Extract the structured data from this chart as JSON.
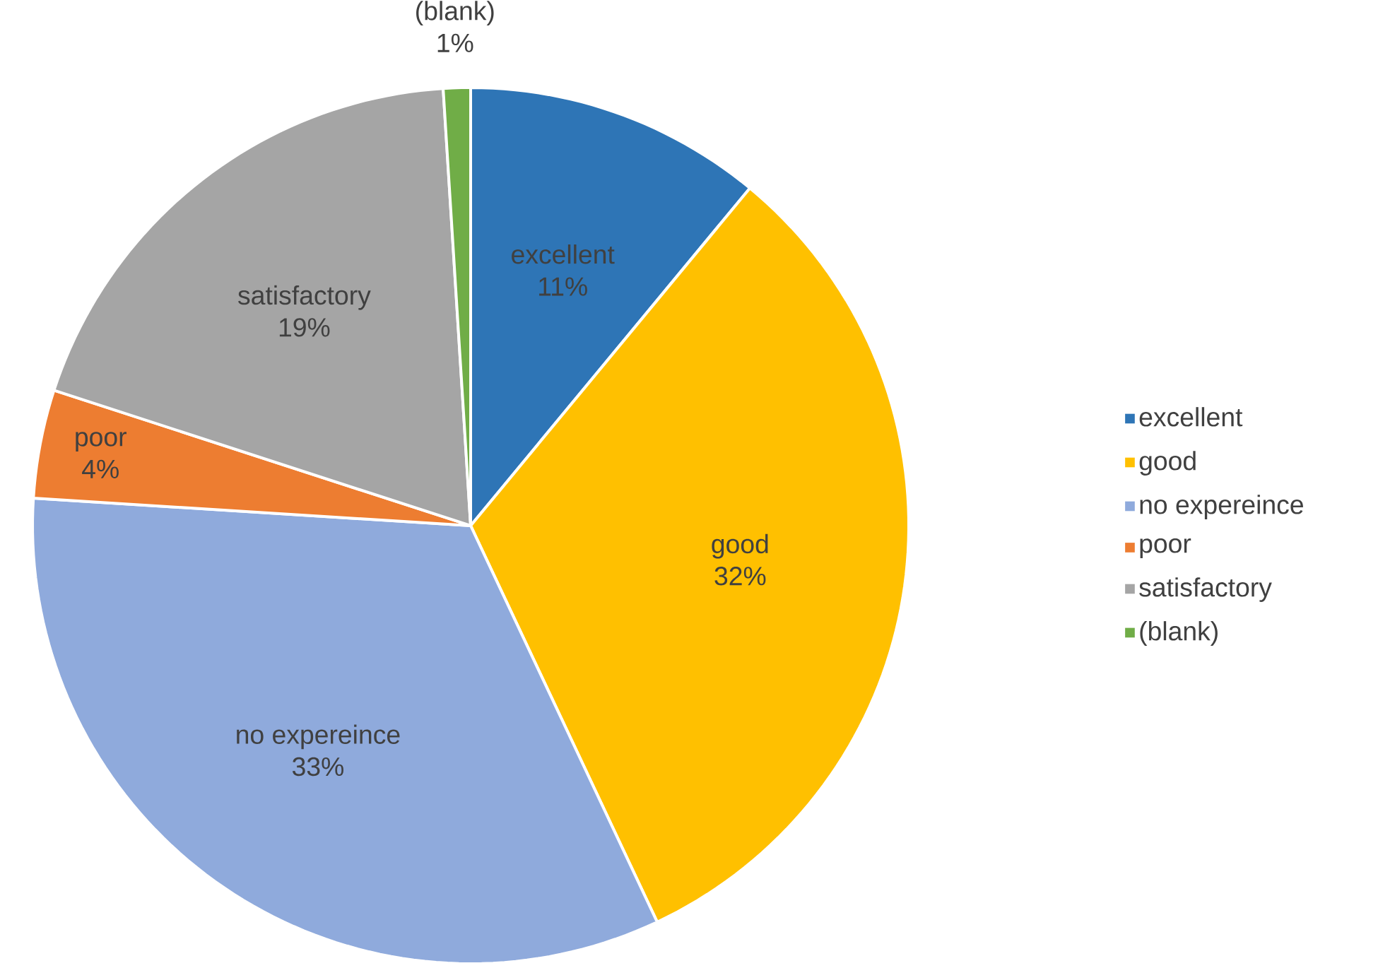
{
  "chart_data": {
    "type": "pie",
    "categories": [
      "excellent",
      "good",
      "no expereince",
      "poor",
      "satisfactory",
      "(blank)"
    ],
    "values": [
      11,
      32,
      33,
      4,
      19,
      1
    ],
    "value_labels": [
      "11%",
      "32%",
      "33%",
      "4%",
      "19%",
      "1%"
    ],
    "colors": [
      "#2e75b6",
      "#ffc000",
      "#8faadc",
      "#ed7d31",
      "#a5a5a5",
      "#70ad47"
    ],
    "legend": "right"
  }
}
